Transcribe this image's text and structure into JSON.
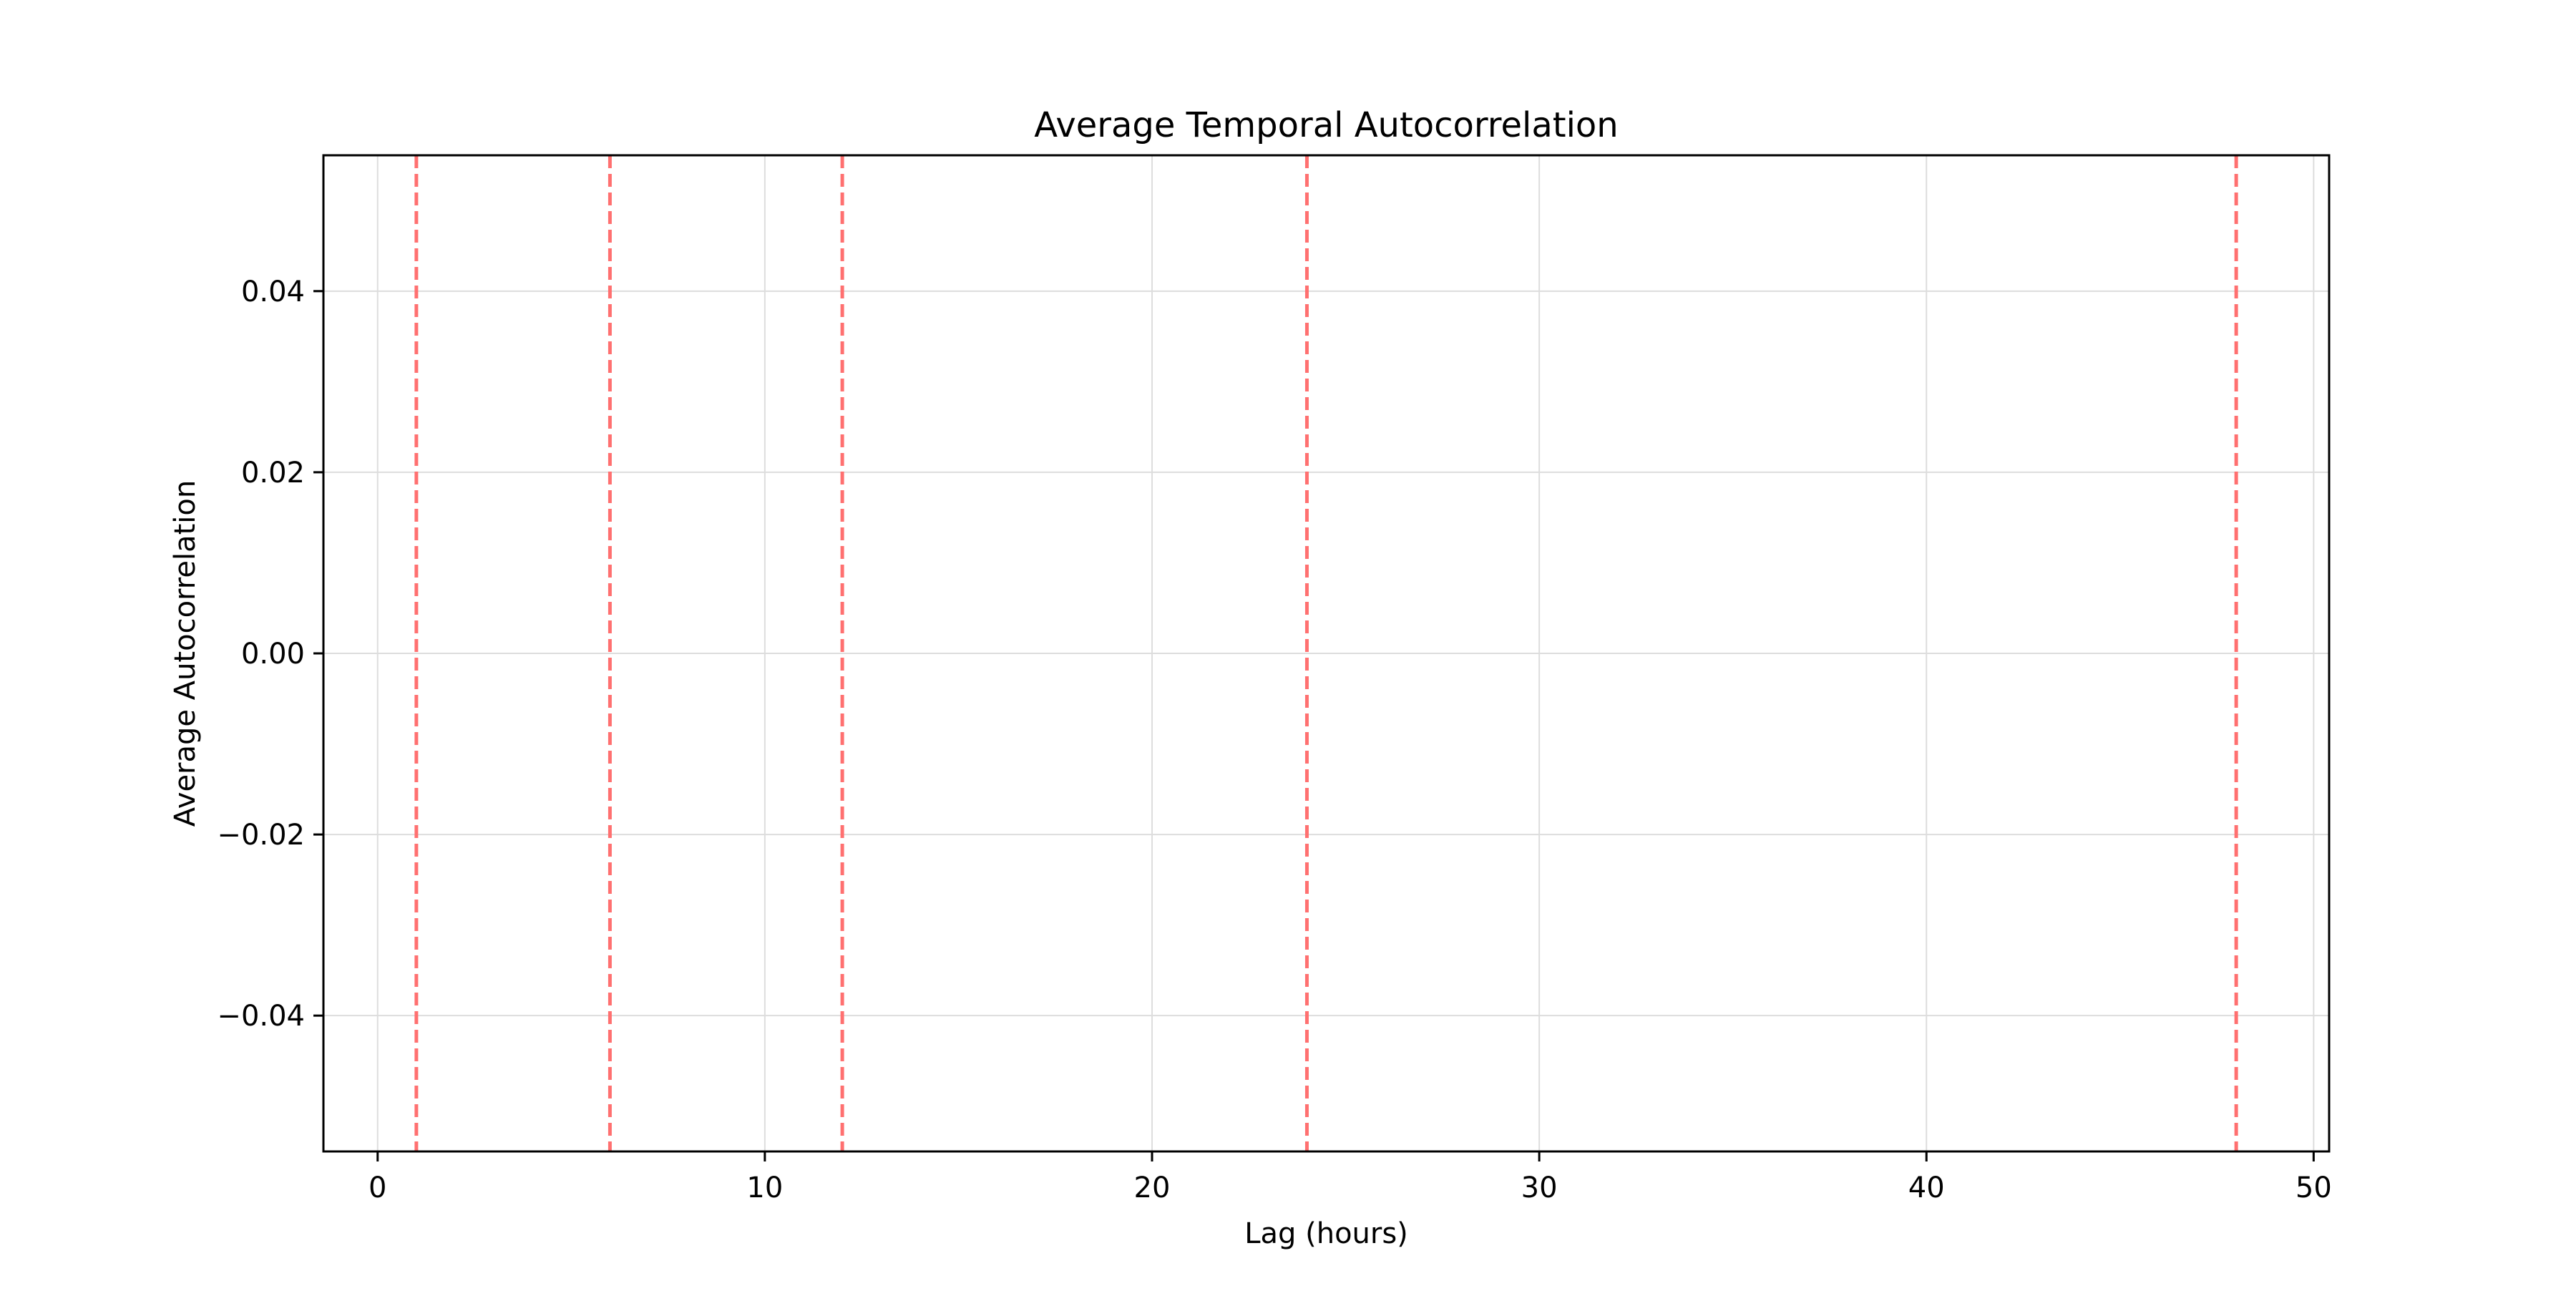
{
  "chart_data": {
    "type": "line",
    "title": "Average Temporal Autocorrelation",
    "xlabel": "Lag (hours)",
    "ylabel": "Average Autocorrelation",
    "xlim": [
      -1.4,
      50.4
    ],
    "ylim": [
      -0.055,
      0.055
    ],
    "x_ticks": [
      0,
      10,
      20,
      30,
      40,
      50
    ],
    "y_ticks": [
      -0.04,
      -0.02,
      0.0,
      0.02,
      0.04
    ],
    "x_tick_labels": [
      "0",
      "10",
      "20",
      "30",
      "40",
      "50"
    ],
    "y_tick_labels": [
      "−0.04",
      "−0.02",
      "0.00",
      "0.02",
      "0.04"
    ],
    "grid": true,
    "series": [],
    "reference_lines": {
      "orientation": "vertical",
      "style": "dashed",
      "color": "#ff7070",
      "x": [
        1,
        6,
        12,
        24,
        48
      ]
    },
    "colors": {
      "grid": "#dddddd",
      "axes": "#000000",
      "background": "#ffffff"
    }
  }
}
